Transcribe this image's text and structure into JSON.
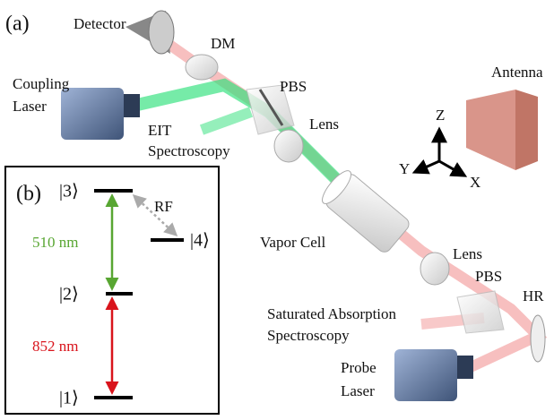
{
  "panel_a": {
    "label": "(a)",
    "detector": "Detector",
    "dm": "DM",
    "coupling_laser": [
      "Coupling",
      "Laser"
    ],
    "pbs_top": "PBS",
    "antenna": "Antenna",
    "eit": [
      "EIT",
      "Spectroscopy"
    ],
    "lens_top": "Lens",
    "axes": {
      "z": "Z",
      "y": "Y",
      "x": "X"
    },
    "vapor_cell": "Vapor Cell",
    "lens_bottom": "Lens",
    "pbs_bottom": "PBS",
    "hr": "HR",
    "saturated": [
      "Saturated Absorption",
      "Spectroscopy"
    ],
    "probe_laser": [
      "Probe",
      "Laser"
    ]
  },
  "panel_b": {
    "label": "(b)",
    "levels": [
      "|3⟩",
      "|4⟩",
      "|2⟩",
      "|1⟩"
    ],
    "rf": "RF",
    "coupling_wavelength": "510 nm",
    "probe_wavelength": "852 nm"
  }
}
